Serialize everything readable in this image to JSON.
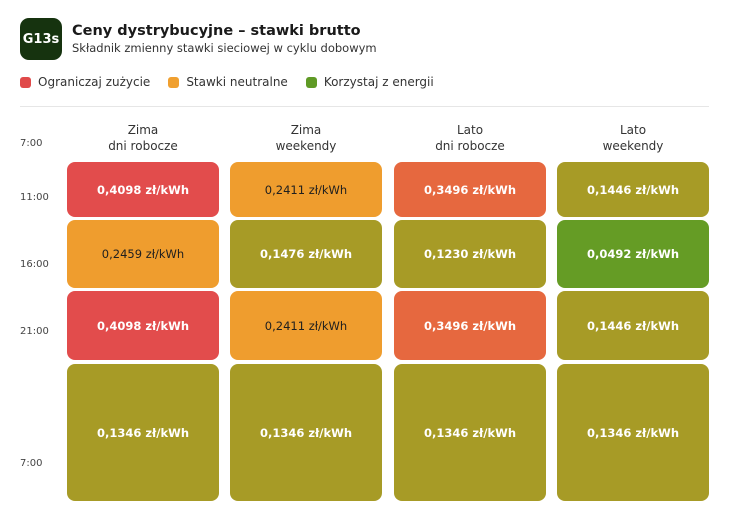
{
  "header": {
    "badge": "G13s",
    "title": "Ceny dystrybucyjne – stawki brutto",
    "subtitle": "Składnik zmienny stawki sieciowej w cyklu dobowym"
  },
  "legend": [
    {
      "label": "Ograniczaj zużycie",
      "color": "#e04a4a"
    },
    {
      "label": "Stawki neutralne",
      "color": "#f0a030"
    },
    {
      "label": "Korzystaj z energii",
      "color": "#5f9a25"
    }
  ],
  "columns": [
    {
      "line1": "Zima",
      "line2": "dni robocze"
    },
    {
      "line1": "Zima",
      "line2": "weekendy"
    },
    {
      "line1": "Lato",
      "line2": "dni robocze"
    },
    {
      "line1": "Lato",
      "line2": "weekendy"
    }
  ],
  "times": [
    "7:00",
    "11:00",
    "16:00",
    "21:00",
    "7:00"
  ],
  "cells": [
    [
      "0,4098 zł/kWh",
      "0,2459 zł/kWh",
      "0,4098 zł/kWh",
      "0,1346 zł/kWh"
    ],
    [
      "0,2411 zł/kWh",
      "0,1476 zł/kWh",
      "0,2411 zł/kWh",
      "0,1346 zł/kWh"
    ],
    [
      "0,3496 zł/kWh",
      "0,1230 zł/kWh",
      "0,3496 zł/kWh",
      "0,1346 zł/kWh"
    ],
    [
      "0,1446 zł/kWh",
      "0,0492 zł/kWh",
      "0,1446 zł/kWh",
      "0,1346 zł/kWh"
    ]
  ],
  "colors": {
    "red": "#e24c4c",
    "orange_red": "#e6683f",
    "orange": "#ef9d2e",
    "olive": "#a79b26",
    "green": "#659c25"
  }
}
